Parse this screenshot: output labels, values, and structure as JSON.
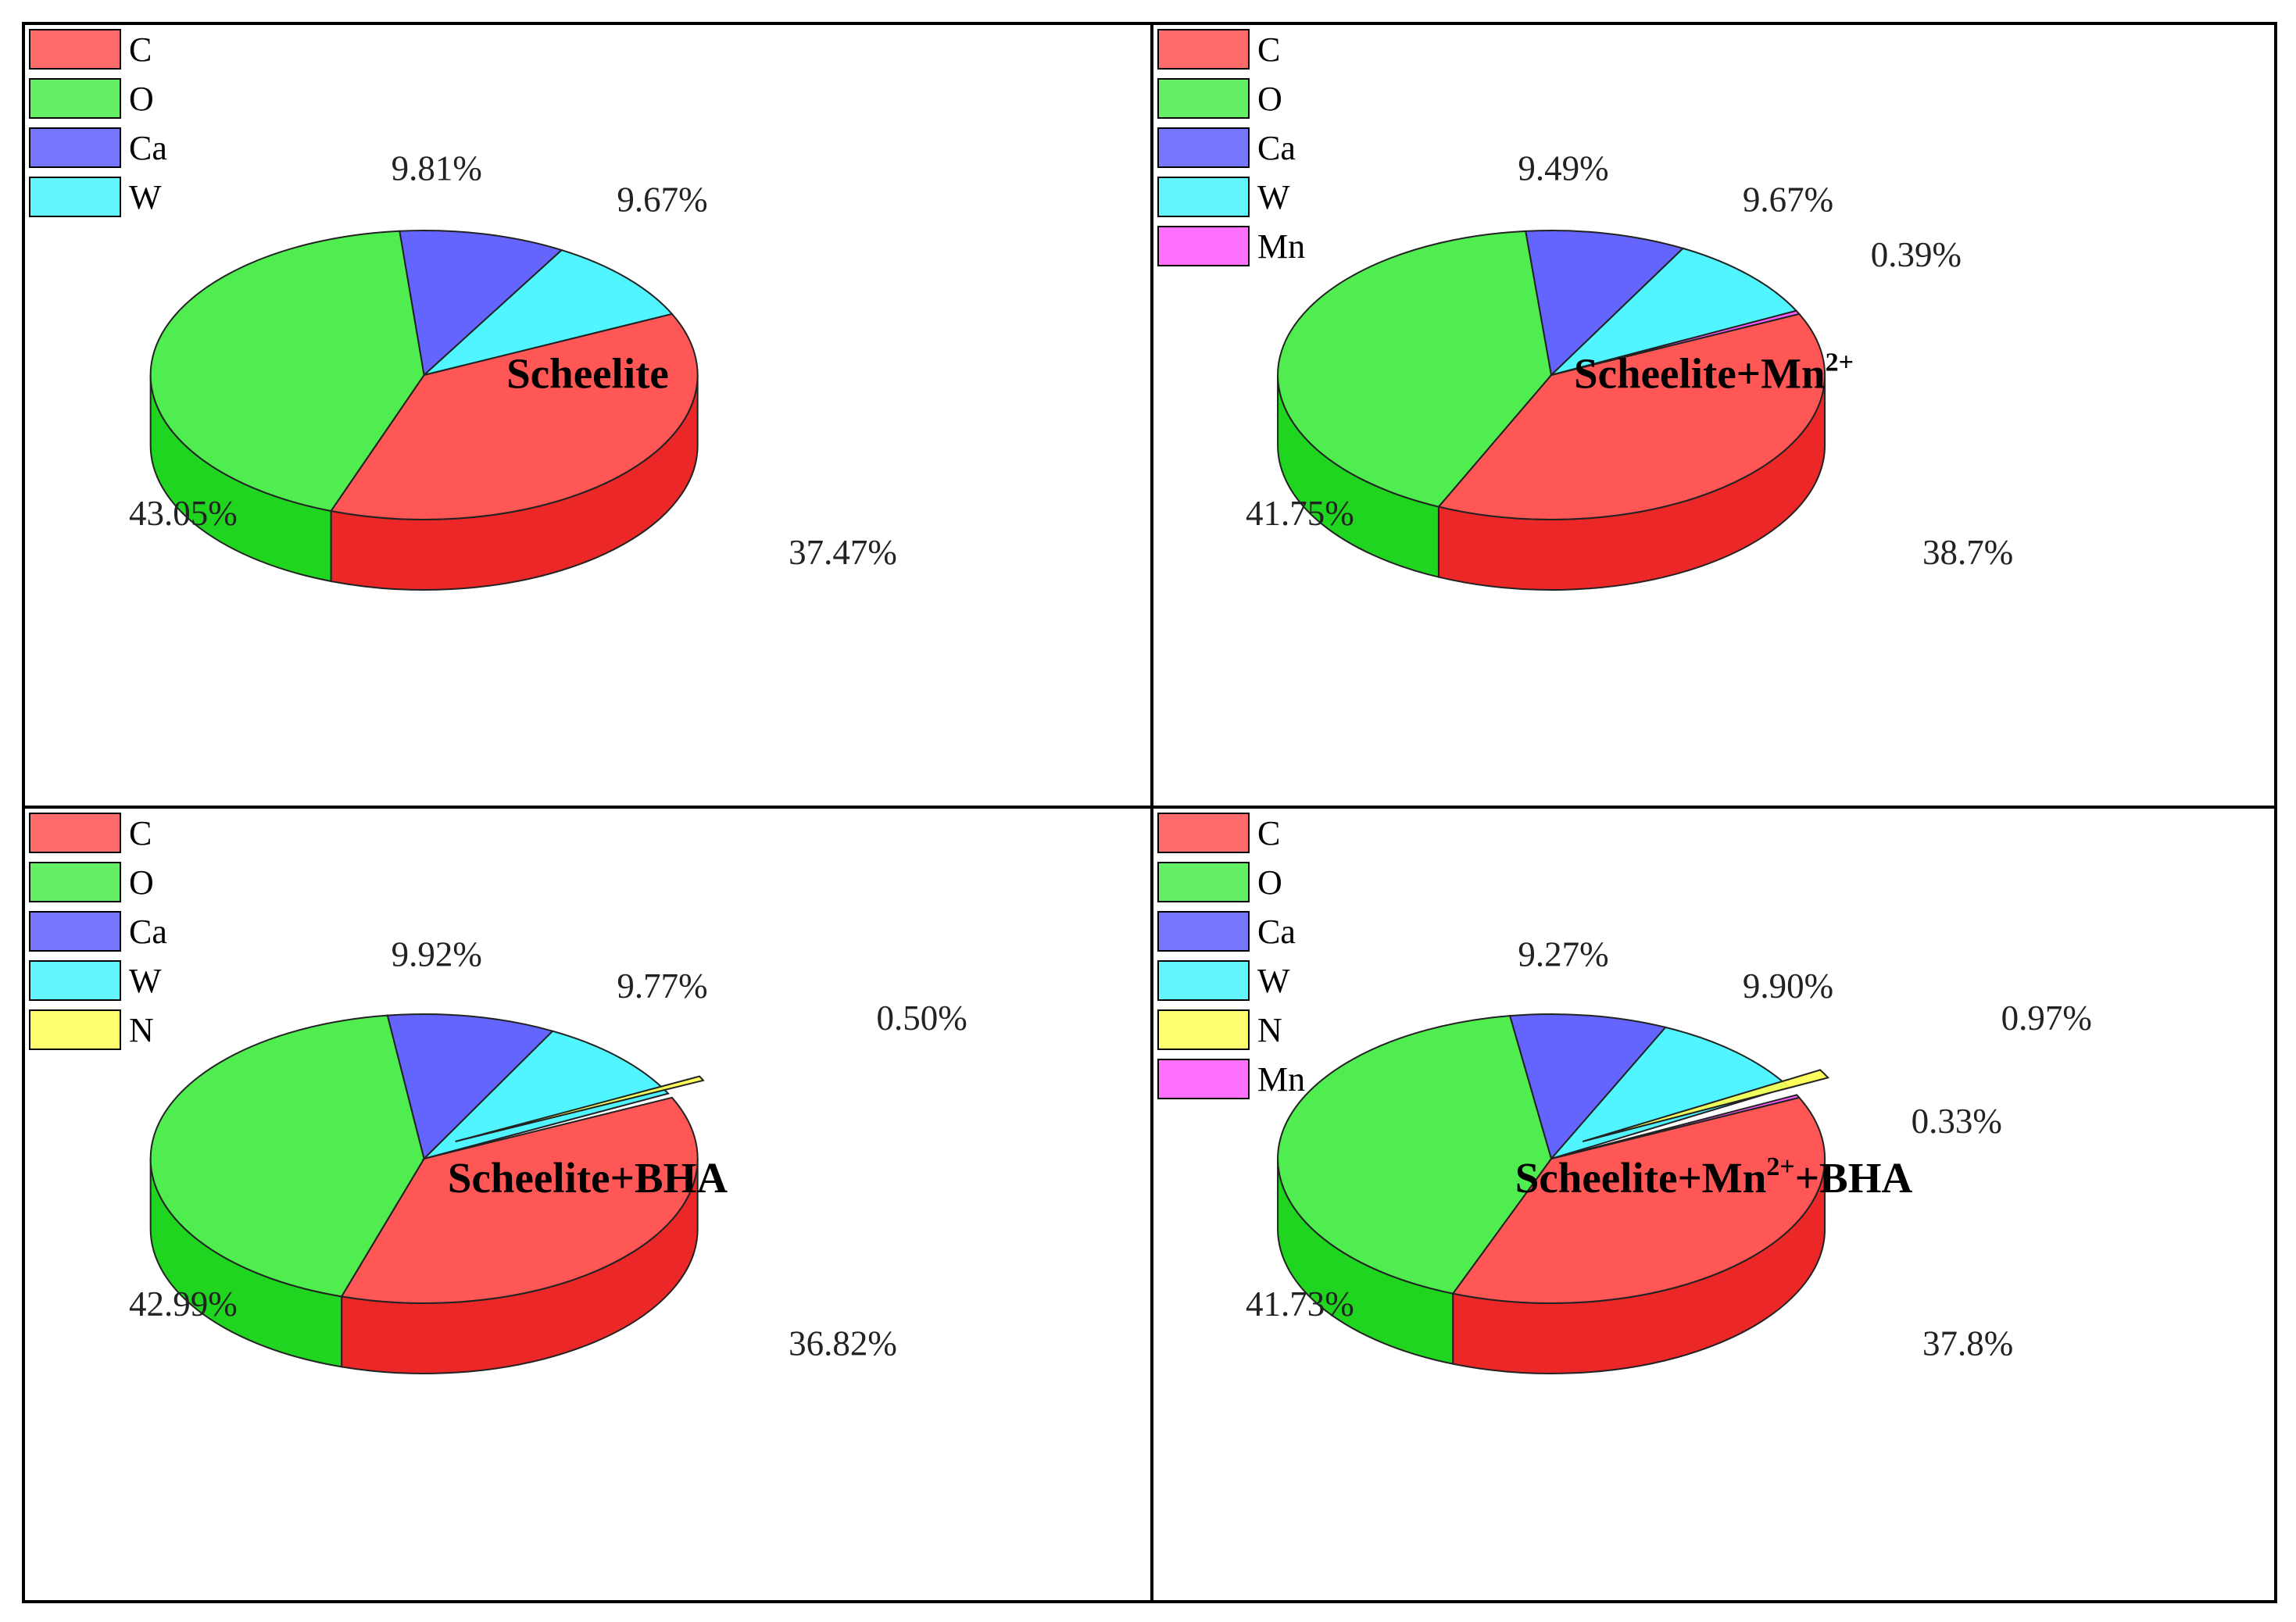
{
  "colors": {
    "C": "#ff2a2a",
    "O": "#22e822",
    "Ca": "#3b3bff",
    "W": "#22f2ff",
    "N": "#ffff33",
    "Mn": "#ff33ff"
  },
  "chart_data": [
    {
      "type": "pie",
      "title": "Scheelite",
      "legend": [
        "C",
        "O",
        "Ca",
        "W"
      ],
      "slices": [
        {
          "label": "C",
          "value": 37.47,
          "text": "37.47%"
        },
        {
          "label": "O",
          "value": 43.05,
          "text": "43.05%"
        },
        {
          "label": "Ca",
          "value": 9.81,
          "text": "9.81%"
        },
        {
          "label": "W",
          "value": 9.67,
          "text": "9.67%"
        }
      ]
    },
    {
      "type": "pie",
      "title": "Scheelite+Mn",
      "title_sup": "2+",
      "title_suffix": "",
      "legend": [
        "C",
        "O",
        "Ca",
        "W",
        "Mn"
      ],
      "slices": [
        {
          "label": "C",
          "value": 38.7,
          "text": "38.7%"
        },
        {
          "label": "O",
          "value": 41.75,
          "text": "41.75%"
        },
        {
          "label": "Ca",
          "value": 9.49,
          "text": "9.49%"
        },
        {
          "label": "W",
          "value": 9.67,
          "text": "9.67%"
        },
        {
          "label": "Mn",
          "value": 0.39,
          "text": "0.39%"
        }
      ]
    },
    {
      "type": "pie",
      "title": "Scheelite+BHA",
      "legend": [
        "C",
        "O",
        "Ca",
        "W",
        "N"
      ],
      "slices": [
        {
          "label": "C",
          "value": 36.82,
          "text": "36.82%"
        },
        {
          "label": "O",
          "value": 42.99,
          "text": "42.99%"
        },
        {
          "label": "Ca",
          "value": 9.92,
          "text": "9.92%"
        },
        {
          "label": "W",
          "value": 9.77,
          "text": "9.77%"
        },
        {
          "label": "N",
          "value": 0.5,
          "text": "0.50%"
        }
      ]
    },
    {
      "type": "pie",
      "title": "Scheelite+Mn",
      "title_sup": "2+",
      "title_suffix": "+BHA",
      "legend": [
        "C",
        "O",
        "Ca",
        "W",
        "N",
        "Mn"
      ],
      "slices": [
        {
          "label": "C",
          "value": 37.8,
          "text": "37.8%"
        },
        {
          "label": "O",
          "value": 41.73,
          "text": "41.73%"
        },
        {
          "label": "Ca",
          "value": 9.27,
          "text": "9.27%"
        },
        {
          "label": "W",
          "value": 9.9,
          "text": "9.90%"
        },
        {
          "label": "N",
          "value": 0.97,
          "text": "0.97%"
        },
        {
          "label": "Mn",
          "value": 0.33,
          "text": "0.33%"
        }
      ]
    }
  ]
}
